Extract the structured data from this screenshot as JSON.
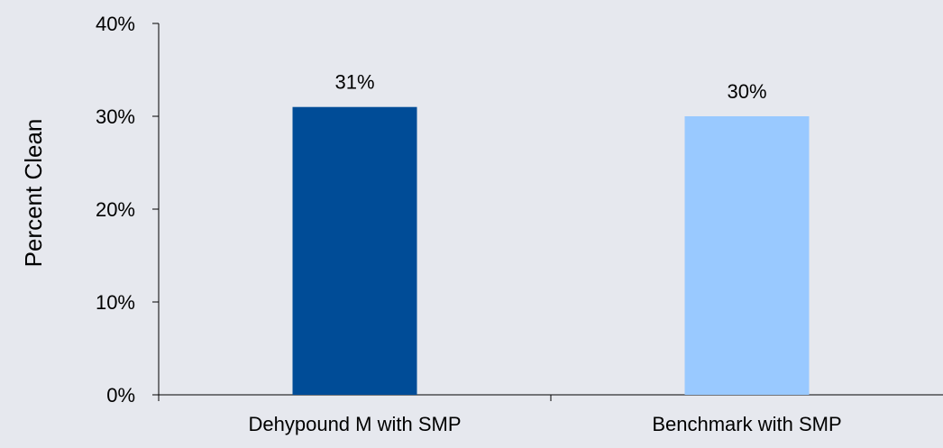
{
  "chart_data": {
    "type": "bar",
    "title": "",
    "xlabel": "",
    "ylabel": "Percent Clean",
    "categories": [
      "Dehypound M with SMP",
      "Benchmark with SMP"
    ],
    "values": [
      31,
      30
    ],
    "data_labels": [
      "31%",
      "30%"
    ],
    "bar_colors": [
      "#004c97",
      "#99c9ff"
    ],
    "ylim": [
      0,
      40
    ],
    "yticks": [
      0,
      10,
      20,
      30,
      40
    ],
    "ytick_labels": [
      "0%",
      "10%",
      "20%",
      "30%",
      "40%"
    ],
    "grid": false,
    "legend": "none",
    "background_color": "#e6e8ee"
  }
}
